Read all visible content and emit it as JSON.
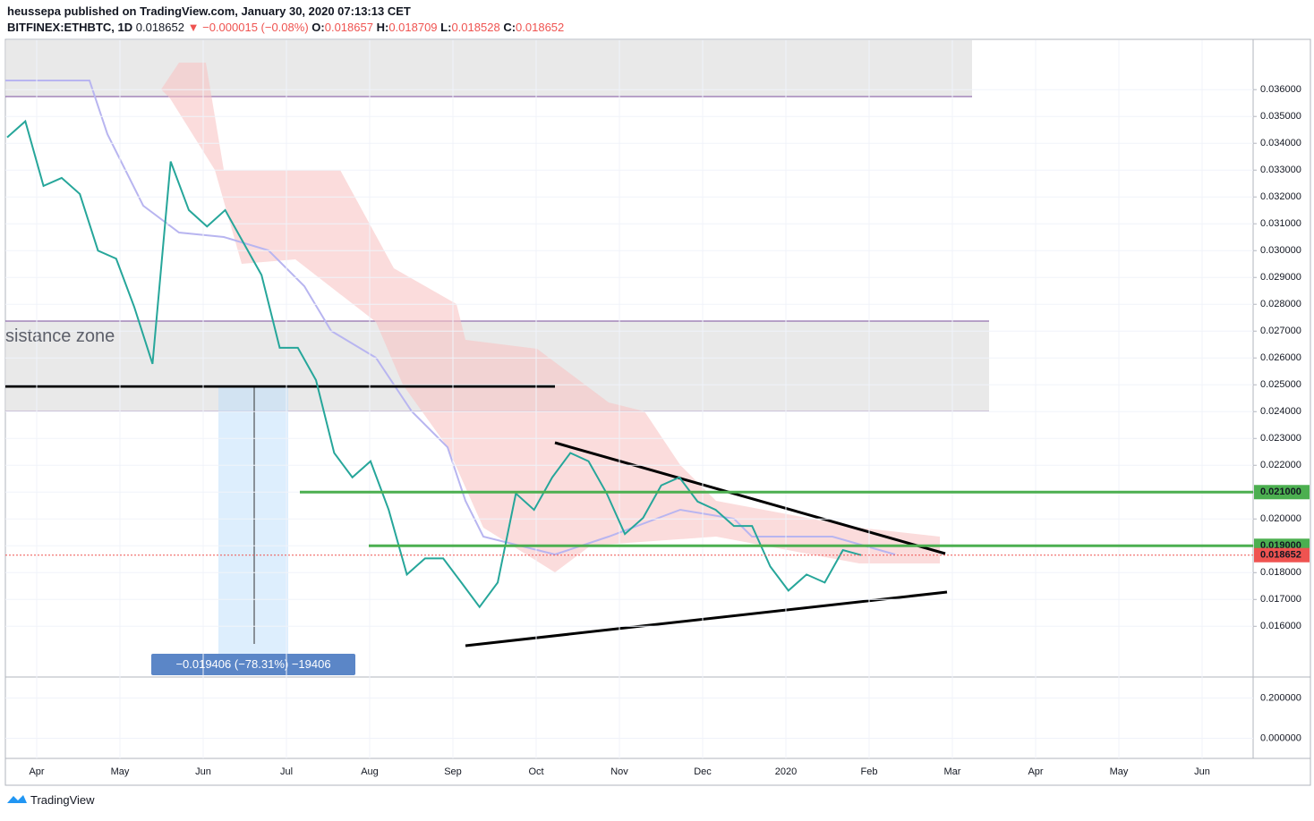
{
  "header": {
    "publisher": "heussepa published on TradingView.com, January 30, 2020 07:13:13 CET",
    "symbol": "BITFINEX:ETHBTC, 1D",
    "last": "0.018652",
    "arrow": "▼",
    "change": "−0.000015 (−0.08%)",
    "open_label": "O:",
    "open": "0.018657",
    "high_label": "H:",
    "high": "0.018709",
    "low_label": "L:",
    "low": "0.018528",
    "close_label": "C:",
    "close": "0.018652"
  },
  "annotations": {
    "zone": "sistance zone",
    "measure": "−0.019406 (−78.31%) −19406"
  },
  "footer": {
    "brand": "TradingView"
  },
  "chart_data": {
    "type": "line",
    "color": "#26a69a",
    "x_labels": [
      "Apr",
      "May",
      "Jun",
      "Jul",
      "Aug",
      "Sep",
      "Oct",
      "Nov",
      "Dec",
      "2020",
      "Feb",
      "Mar",
      "Apr",
      "May",
      "Jun"
    ],
    "values": [
      0.03422,
      0.03482,
      0.03241,
      0.03271,
      0.03211,
      0.03,
      0.0297,
      0.02789,
      0.02578,
      0.03332,
      0.03151,
      0.0309,
      0.03151,
      0.0303,
      0.02909,
      0.02638,
      0.02638,
      0.02517,
      0.02246,
      0.02155,
      0.02215,
      0.02034,
      0.01793,
      0.01853,
      0.01853,
      0.01763,
      0.01672,
      0.01763,
      0.02095,
      0.02034,
      0.02155,
      0.02246,
      0.02215,
      0.02095,
      0.01944,
      0.02004,
      0.02125,
      0.02155,
      0.02065,
      0.02034,
      0.01974,
      0.01974,
      0.01823,
      0.01733,
      0.01793,
      0.01763,
      0.01884,
      0.018652
    ],
    "ylim": [
      0.01411,
      0.03784
    ],
    "yticks": [
      {
        "value": 0.016,
        "label": "0.016000"
      },
      {
        "value": 0.017,
        "label": "0.017000"
      },
      {
        "value": 0.018,
        "label": "0.018000"
      },
      {
        "value": 0.019,
        "label": "0.019000"
      },
      {
        "value": 0.02,
        "label": "0.020000"
      },
      {
        "value": 0.021,
        "label": "0.021000"
      },
      {
        "value": 0.022,
        "label": "0.022000"
      },
      {
        "value": 0.023,
        "label": "0.023000"
      },
      {
        "value": 0.024,
        "label": "0.024000"
      },
      {
        "value": 0.025,
        "label": "0.025000"
      },
      {
        "value": 0.026,
        "label": "0.026000"
      },
      {
        "value": 0.027,
        "label": "0.027000"
      },
      {
        "value": 0.028,
        "label": "0.028000"
      },
      {
        "value": 0.029,
        "label": "0.029000"
      },
      {
        "value": 0.03,
        "label": "0.030000"
      },
      {
        "value": 0.031,
        "label": "0.031000"
      },
      {
        "value": 0.032,
        "label": "0.032000"
      },
      {
        "value": 0.033,
        "label": "0.033000"
      },
      {
        "value": 0.034,
        "label": "0.034000"
      },
      {
        "value": 0.035,
        "label": "0.035000"
      },
      {
        "value": 0.036,
        "label": "0.036000"
      }
    ],
    "price_lines": [
      {
        "value": 0.021,
        "label": "0.021000",
        "color": "#4caf50"
      },
      {
        "value": 0.019,
        "label": "0.019000",
        "color": "#4caf50"
      },
      {
        "value": 0.018652,
        "label": "0.018652",
        "color": "#ef5350"
      }
    ],
    "y2lim": [
      -0.1,
      0.3
    ],
    "y2ticks": [
      {
        "value": 0.2,
        "label": "0.200000"
      },
      {
        "value": 0,
        "label": "0.000000"
      }
    ],
    "grid": true
  }
}
